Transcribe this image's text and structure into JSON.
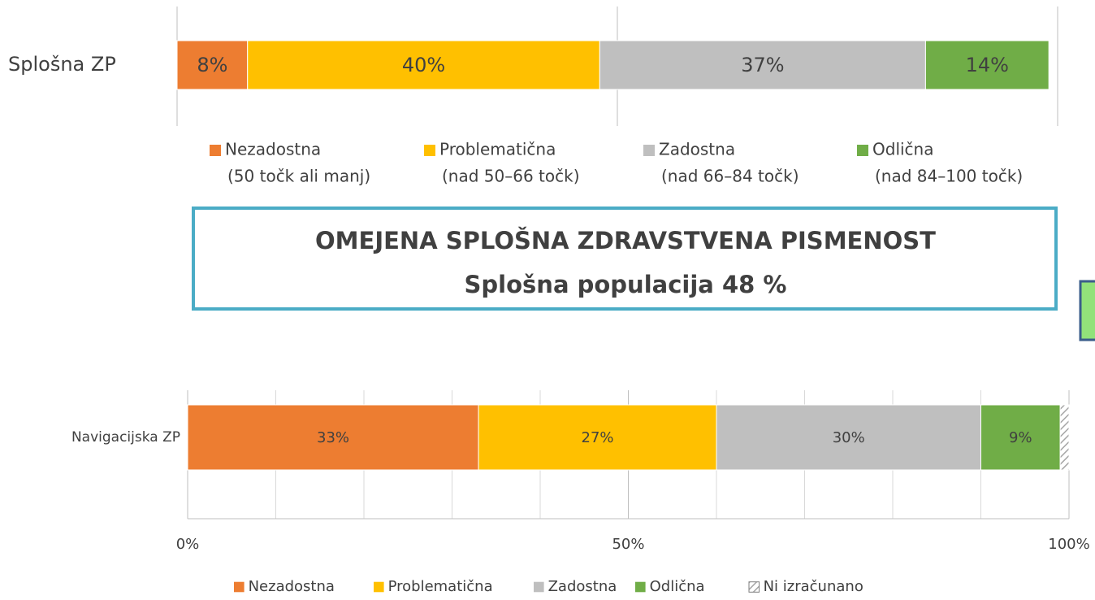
{
  "chart_data": [
    {
      "type": "stacked-barh",
      "categories": [
        "Splošna ZP"
      ],
      "xlim": [
        0,
        100
      ],
      "xticks": [
        0,
        50,
        100
      ],
      "show_tick_labels": false,
      "grid": true,
      "series": [
        {
          "name": "Nezadostna",
          "legend_note": "(50 točk ali manj)",
          "color": "#ed7d31",
          "values": [
            8
          ],
          "value_labels": [
            "8%"
          ]
        },
        {
          "name": "Problematična",
          "legend_note": "(nad 50–66 točk)",
          "color": "#ffc000",
          "values": [
            40
          ],
          "value_labels": [
            "40%"
          ]
        },
        {
          "name": "Zadostna",
          "legend_note": "(nad 66–84 točk)",
          "color": "#bfbfbf",
          "values": [
            37
          ],
          "value_labels": [
            "37%"
          ]
        },
        {
          "name": "Odlična",
          "legend_note": "(nad 84–100 točk)",
          "color": "#70ad47",
          "values": [
            14
          ],
          "value_labels": [
            "14%"
          ]
        }
      ]
    },
    {
      "type": "stacked-barh",
      "categories": [
        "Navigacijska ZP"
      ],
      "xlim": [
        0,
        100
      ],
      "xticks": [
        {
          "value": 0,
          "label": "0%"
        },
        {
          "value": 50,
          "label": "50%"
        },
        {
          "value": 100,
          "label": "100%"
        }
      ],
      "minor_xticks": [
        10,
        20,
        30,
        40,
        60,
        70,
        80,
        90
      ],
      "show_tick_labels": true,
      "grid": true,
      "series": [
        {
          "name": "Nezadostna",
          "color": "#ed7d31",
          "values": [
            33
          ],
          "value_labels": [
            "33%"
          ]
        },
        {
          "name": "Problematična",
          "color": "#ffc000",
          "values": [
            27
          ],
          "value_labels": [
            "27%"
          ]
        },
        {
          "name": "Zadostna",
          "color": "#bfbfbf",
          "values": [
            30
          ],
          "value_labels": [
            "30%"
          ]
        },
        {
          "name": "Odlična",
          "color": "#70ad47",
          "values": [
            9
          ],
          "value_labels": [
            "9%"
          ]
        },
        {
          "name": "Ni izračunano",
          "color": "#a6a6a6",
          "pattern": "hatch",
          "values": [
            1
          ]
        }
      ]
    }
  ],
  "callout": {
    "lines": [
      "OMEJENA SPLOŠNA ZDRAVSTVENA PISMENOST",
      "Splošna populacija 48 %"
    ]
  }
}
